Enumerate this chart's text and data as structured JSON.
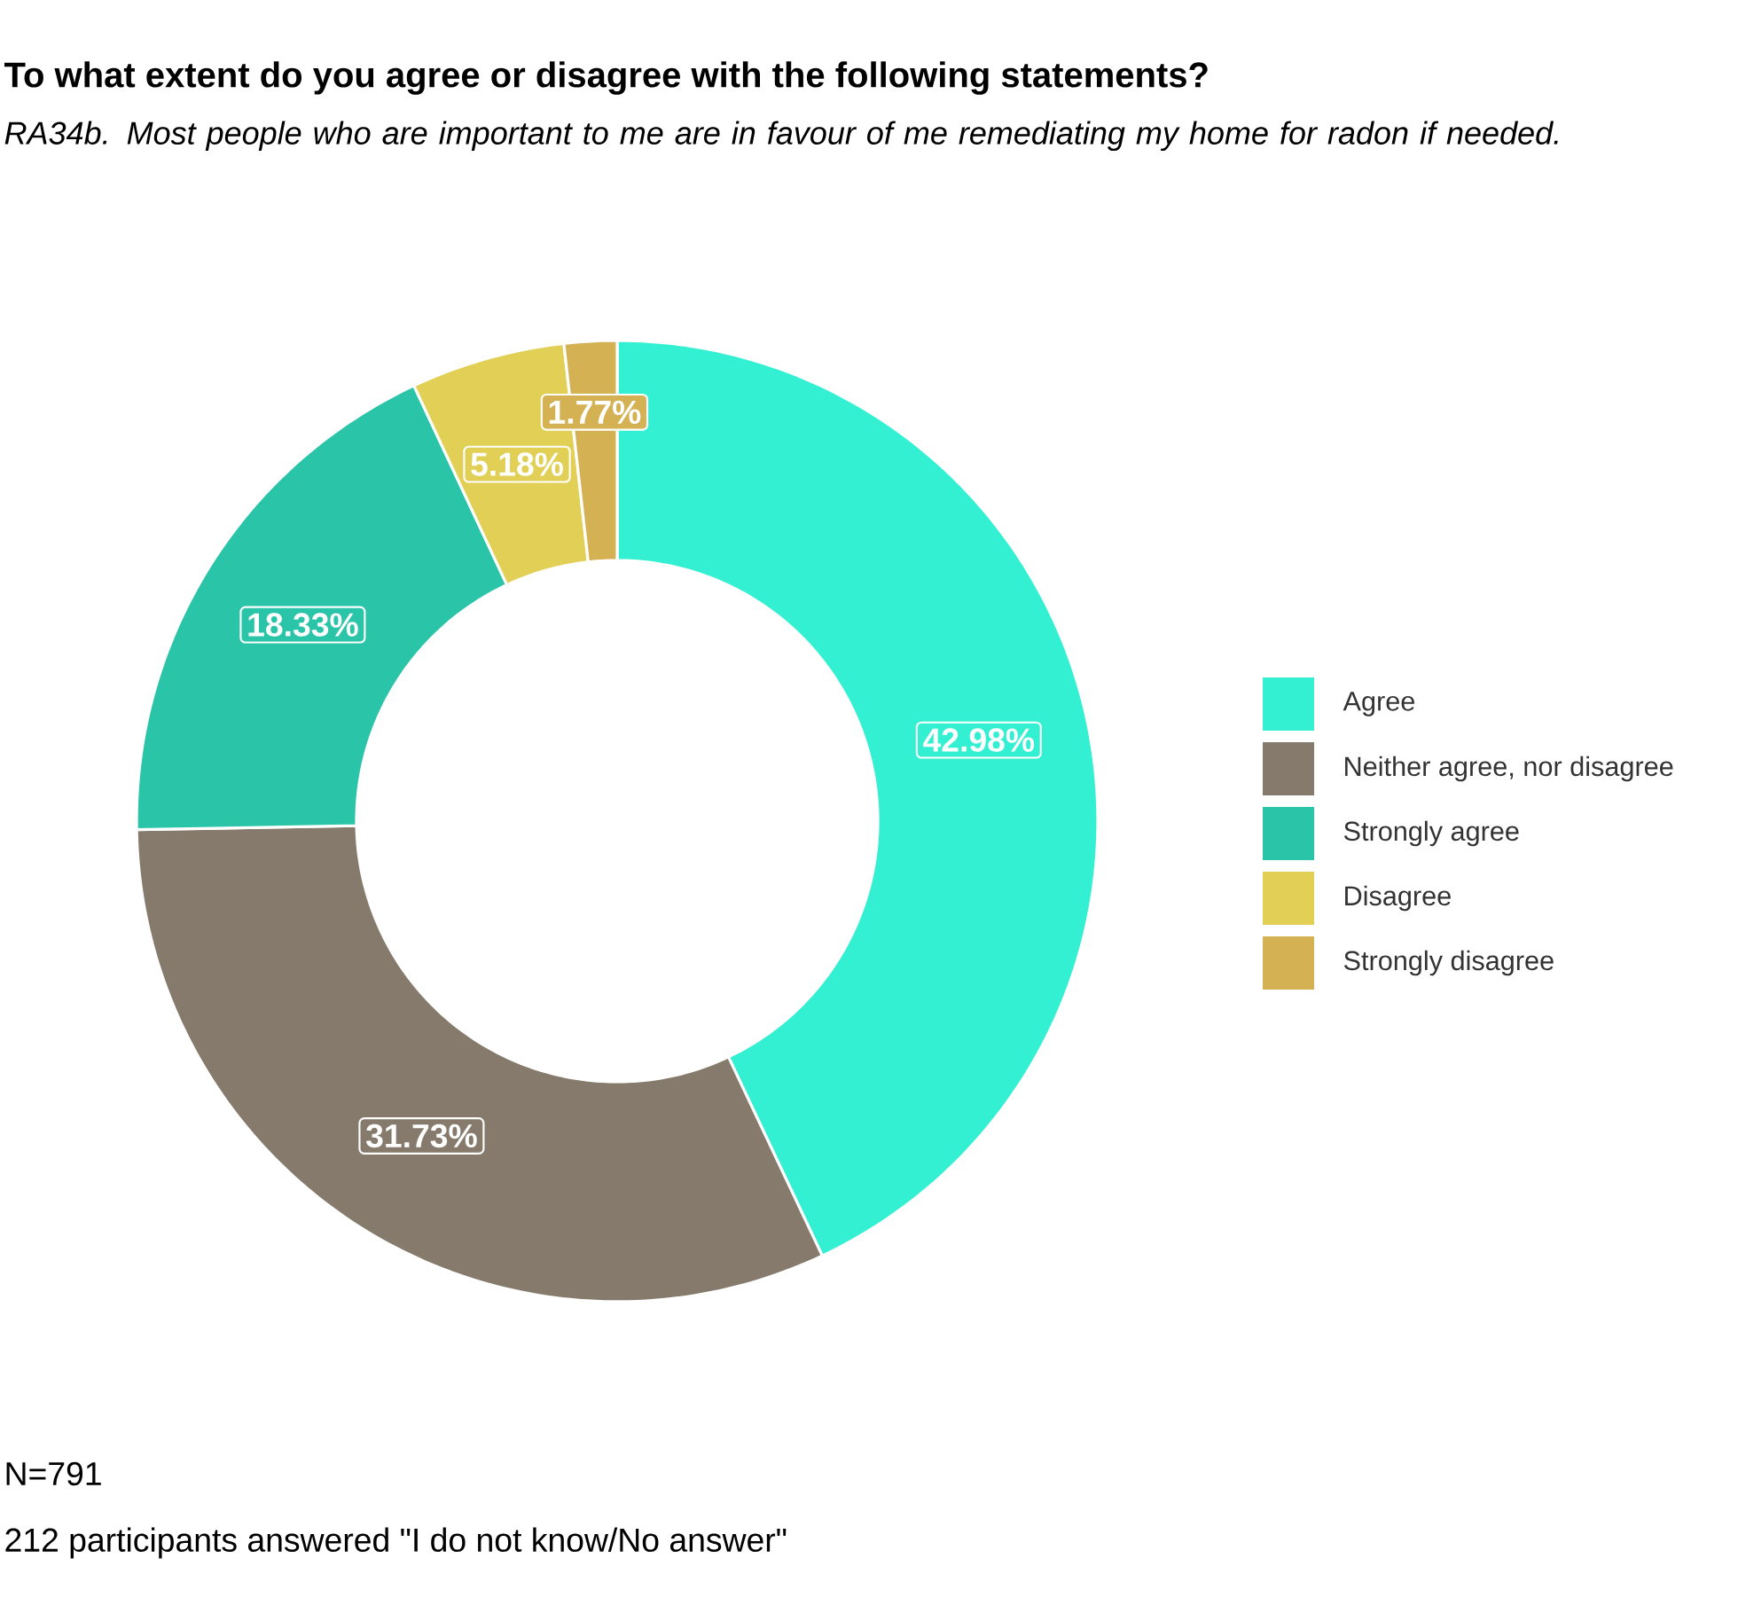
{
  "chart_data": {
    "type": "donut",
    "title": "To what extent do you agree or disagree with the following statements?",
    "subtitle": "*RA34b. Most people who are important to me are in favour of me remediating my home for radon if needed.*",
    "categories": [
      "Agree",
      "Neither agree, nor disagree",
      "Strongly agree",
      "Disagree",
      "Strongly disagree"
    ],
    "values": [
      42.98,
      31.73,
      18.33,
      5.18,
      1.77
    ],
    "colors": [
      "#33f0d2",
      "#857a6b",
      "#2ac4a8",
      "#e2cf55",
      "#d4b153"
    ],
    "value_labels": [
      "42.98%",
      "31.73%",
      "18.33%",
      "5.18%",
      "1.77%"
    ],
    "legend": "right",
    "annotations": [
      "N=791",
      "212 participants answered \"I do not know/No answer\""
    ]
  }
}
